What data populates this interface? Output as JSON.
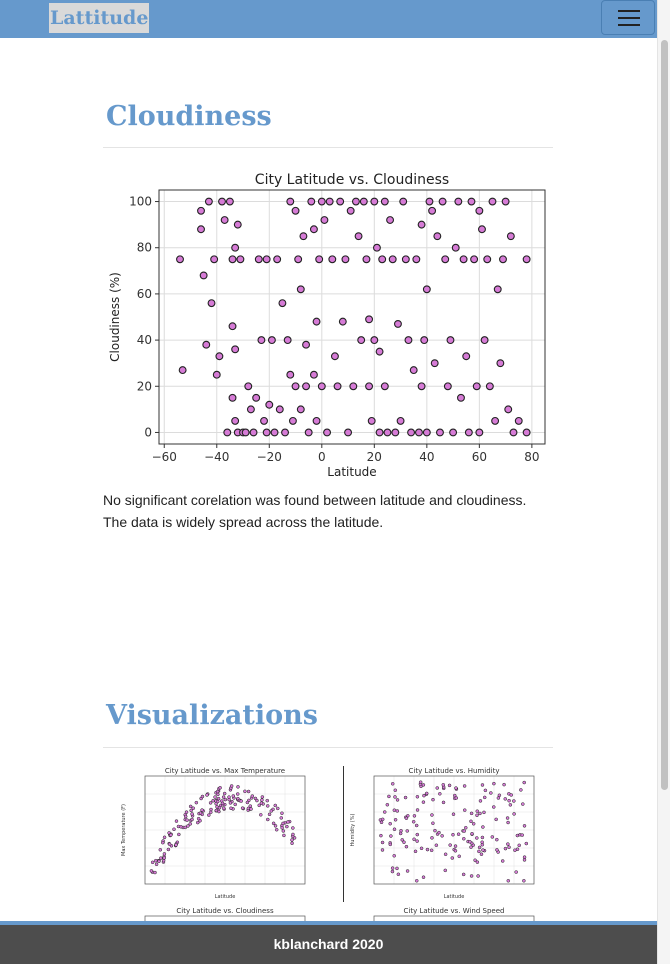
{
  "nav": {
    "brand": "Lattitude",
    "menu_icon": "hamburger-icon"
  },
  "cloudiness_section": {
    "heading": "Cloudiness",
    "description_line1": "No significant corelation was found between latitude and cloudiness.",
    "description_line2": "The data is widely spread across the latitude."
  },
  "visualizations_section": {
    "heading": "Visualizations",
    "thumbnails": [
      {
        "title": "City Latitude vs. Max Temperature",
        "ylabel": "Max Temperature (F)",
        "xlabel": "Latitude"
      },
      {
        "title": "City Latitude vs. Humidity",
        "ylabel": "Humidity (%)",
        "xlabel": "Latitude"
      },
      {
        "title": "City Latitude vs. Cloudiness"
      },
      {
        "title": "City Latitude vs. Wind Speed"
      }
    ]
  },
  "footer": {
    "text": "kblanchard 2020"
  },
  "colors": {
    "accent": "#6699cc",
    "point_fill": "#d67bd6",
    "point_edge": "#222222",
    "footer_bg": "#4d4d4d"
  },
  "chart_data": [
    {
      "type": "scatter",
      "title": "City Latitude vs. Cloudiness",
      "xlabel": "Latitude",
      "ylabel": "Cloudiness (%)",
      "xlim": [
        -62,
        85
      ],
      "ylim": [
        -5,
        105
      ],
      "xticks": [
        -60,
        -40,
        -20,
        0,
        20,
        40,
        60,
        80
      ],
      "yticks": [
        0,
        20,
        40,
        60,
        80,
        100
      ],
      "grid": true,
      "points": [
        [
          -54,
          75
        ],
        [
          -53,
          27
        ],
        [
          -46,
          96
        ],
        [
          -46,
          88
        ],
        [
          -45,
          68
        ],
        [
          -44,
          38
        ],
        [
          -43,
          100
        ],
        [
          -42,
          56
        ],
        [
          -41,
          75
        ],
        [
          -40,
          25
        ],
        [
          -39,
          33
        ],
        [
          -38,
          100
        ],
        [
          -37,
          92
        ],
        [
          -36,
          0
        ],
        [
          -35,
          100
        ],
        [
          -34,
          75
        ],
        [
          -34,
          46
        ],
        [
          -34,
          15
        ],
        [
          -33,
          80
        ],
        [
          -33,
          36
        ],
        [
          -33,
          5
        ],
        [
          -32,
          90
        ],
        [
          -32,
          0
        ],
        [
          -31,
          75
        ],
        [
          -30,
          0
        ],
        [
          -29,
          0
        ],
        [
          -28,
          20
        ],
        [
          -27,
          10
        ],
        [
          -26,
          0
        ],
        [
          -25,
          15
        ],
        [
          -24,
          75
        ],
        [
          -23,
          40
        ],
        [
          -22,
          5
        ],
        [
          -21,
          75
        ],
        [
          -21,
          0
        ],
        [
          -20,
          12
        ],
        [
          -19,
          40
        ],
        [
          -18,
          0
        ],
        [
          -17,
          75
        ],
        [
          -16,
          10
        ],
        [
          -15,
          56
        ],
        [
          -14,
          0
        ],
        [
          -13,
          40
        ],
        [
          -12,
          100
        ],
        [
          -12,
          25
        ],
        [
          -11,
          5
        ],
        [
          -10,
          96
        ],
        [
          -10,
          20
        ],
        [
          -9,
          75
        ],
        [
          -8,
          62
        ],
        [
          -8,
          10
        ],
        [
          -7,
          85
        ],
        [
          -6,
          38
        ],
        [
          -6,
          20
        ],
        [
          -5,
          0
        ],
        [
          -4,
          100
        ],
        [
          -3,
          88
        ],
        [
          -3,
          25
        ],
        [
          -2,
          48
        ],
        [
          -2,
          5
        ],
        [
          -1,
          75
        ],
        [
          0,
          100
        ],
        [
          0,
          20
        ],
        [
          1,
          92
        ],
        [
          2,
          0
        ],
        [
          3,
          100
        ],
        [
          4,
          75
        ],
        [
          5,
          33
        ],
        [
          6,
          20
        ],
        [
          7,
          100
        ],
        [
          8,
          48
        ],
        [
          9,
          75
        ],
        [
          10,
          0
        ],
        [
          11,
          96
        ],
        [
          12,
          20
        ],
        [
          13,
          100
        ],
        [
          14,
          85
        ],
        [
          15,
          40
        ],
        [
          16,
          100
        ],
        [
          17,
          75
        ],
        [
          18,
          49
        ],
        [
          18,
          20
        ],
        [
          19,
          5
        ],
        [
          20,
          100
        ],
        [
          20,
          40
        ],
        [
          21,
          80
        ],
        [
          22,
          35
        ],
        [
          22,
          0
        ],
        [
          23,
          75
        ],
        [
          24,
          100
        ],
        [
          24,
          20
        ],
        [
          25,
          0
        ],
        [
          26,
          92
        ],
        [
          27,
          75
        ],
        [
          28,
          0
        ],
        [
          29,
          47
        ],
        [
          30,
          5
        ],
        [
          31,
          100
        ],
        [
          32,
          75
        ],
        [
          33,
          40
        ],
        [
          34,
          0
        ],
        [
          35,
          27
        ],
        [
          36,
          75
        ],
        [
          37,
          0
        ],
        [
          38,
          90
        ],
        [
          38,
          20
        ],
        [
          39,
          40
        ],
        [
          40,
          62
        ],
        [
          40,
          0
        ],
        [
          41,
          100
        ],
        [
          42,
          96
        ],
        [
          43,
          30
        ],
        [
          44,
          85
        ],
        [
          45,
          0
        ],
        [
          46,
          100
        ],
        [
          47,
          75
        ],
        [
          48,
          20
        ],
        [
          49,
          40
        ],
        [
          50,
          0
        ],
        [
          51,
          80
        ],
        [
          52,
          100
        ],
        [
          53,
          15
        ],
        [
          54,
          75
        ],
        [
          55,
          33
        ],
        [
          56,
          0
        ],
        [
          57,
          100
        ],
        [
          58,
          75
        ],
        [
          59,
          20
        ],
        [
          60,
          96
        ],
        [
          60,
          0
        ],
        [
          61,
          88
        ],
        [
          62,
          40
        ],
        [
          63,
          75
        ],
        [
          64,
          20
        ],
        [
          65,
          100
        ],
        [
          66,
          5
        ],
        [
          67,
          62
        ],
        [
          68,
          30
        ],
        [
          69,
          75
        ],
        [
          70,
          100
        ],
        [
          71,
          10
        ],
        [
          72,
          85
        ],
        [
          73,
          0
        ],
        [
          75,
          5
        ],
        [
          78,
          75
        ],
        [
          78,
          0
        ]
      ]
    }
  ]
}
